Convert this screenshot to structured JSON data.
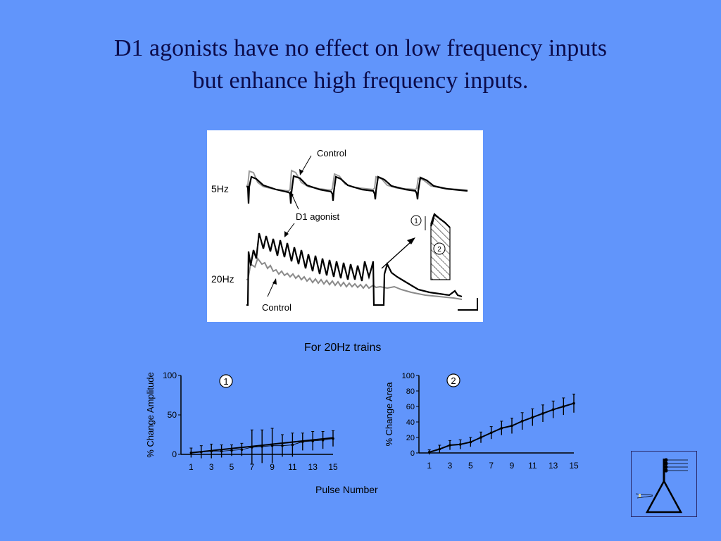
{
  "slide": {
    "title_line1": "D1 agonists have no effect on low frequency inputs",
    "title_line2": "but enhance high frequency inputs."
  },
  "traces": {
    "label_5hz": "5Hz",
    "label_20hz": "20Hz",
    "control_top": "Control",
    "d1_agonist": "D1 agonist",
    "control_bottom": "Control",
    "marker_1": "1",
    "marker_2": "2"
  },
  "plots_header": "For 20Hz trains",
  "shared_xlabel": "Pulse Number",
  "chart_data": [
    {
      "type": "line",
      "badge": "1",
      "ylabel": "% Change Amplitude",
      "ylim": [
        0,
        100
      ],
      "yticks": [
        "0",
        "50",
        "100"
      ],
      "xlim": [
        0,
        15
      ],
      "xticks": [
        "1",
        "3",
        "5",
        "7",
        "9",
        "11",
        "13",
        "15"
      ],
      "x": [
        1,
        2,
        3,
        4,
        5,
        6,
        7,
        8,
        9,
        10,
        11,
        12,
        13,
        14,
        15
      ],
      "y": [
        2,
        3,
        4,
        4,
        5,
        6,
        9,
        10,
        11,
        11,
        12,
        16,
        17,
        18,
        20
      ],
      "err": [
        6,
        8,
        9,
        8,
        7,
        8,
        22,
        21,
        22,
        14,
        15,
        11,
        12,
        11,
        10
      ],
      "fit_line": [
        [
          1,
          2
        ],
        [
          15,
          21
        ]
      ],
      "grid": false
    },
    {
      "type": "line",
      "badge": "2",
      "ylabel": "% Change Area",
      "ylim": [
        0,
        100
      ],
      "yticks": [
        "0",
        "20",
        "40",
        "60",
        "80",
        "100"
      ],
      "xlim": [
        0,
        15
      ],
      "xticks": [
        "1",
        "3",
        "5",
        "7",
        "9",
        "11",
        "13",
        "15"
      ],
      "x": [
        1,
        2,
        3,
        4,
        5,
        6,
        7,
        8,
        9,
        10,
        11,
        12,
        13,
        14,
        15
      ],
      "y": [
        1,
        5,
        10,
        11,
        14,
        20,
        26,
        32,
        35,
        41,
        46,
        51,
        56,
        60,
        64
      ],
      "err": [
        3,
        5,
        6,
        6,
        6,
        7,
        8,
        9,
        10,
        11,
        11,
        11,
        11,
        11,
        12
      ],
      "grid": false
    }
  ]
}
